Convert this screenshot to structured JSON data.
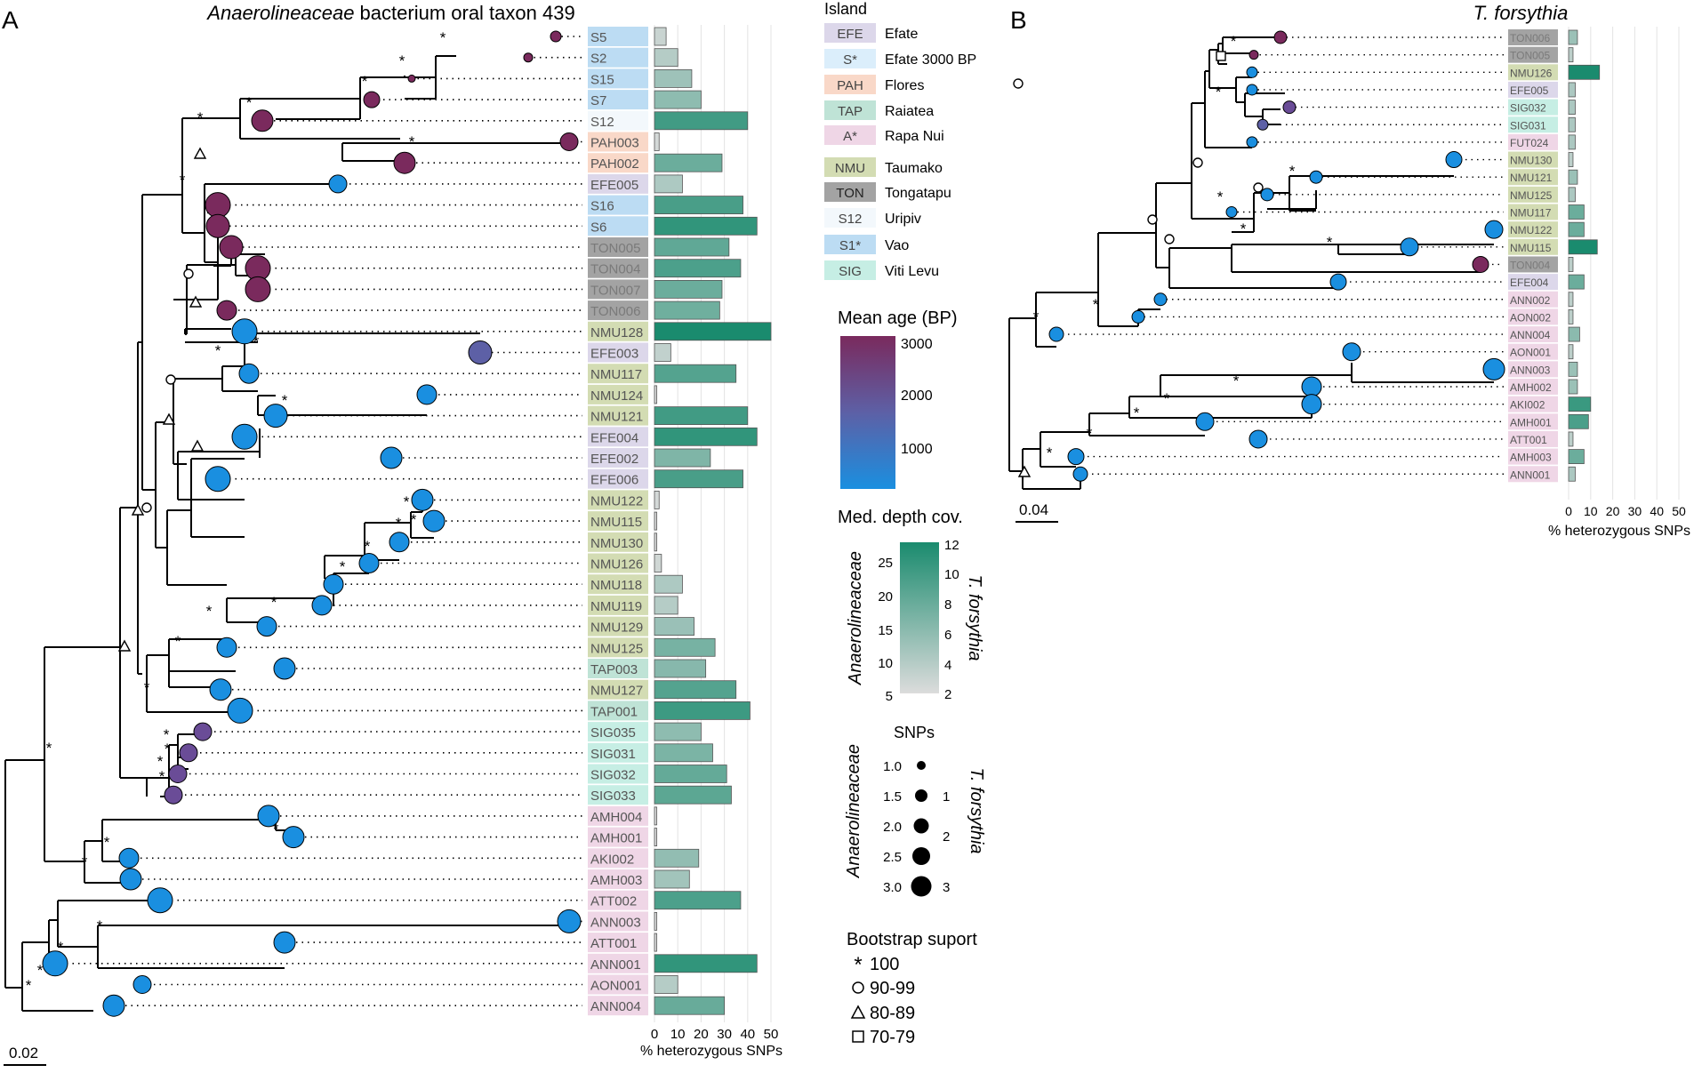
{
  "panel_a": {
    "letter": "A",
    "title_italic": "Anaerolineaceae",
    "title_rest": " bacterium oral taxon 439",
    "scale_label": "0.02",
    "axis_ticks": [
      "0",
      "10",
      "20",
      "30",
      "40",
      "50"
    ],
    "axis_label": "% heterozygous SNPs",
    "leaves": [
      {
        "label": "S5",
        "island": "S1*",
        "het": 5
      },
      {
        "label": "S2",
        "island": "S1*",
        "het": 10
      },
      {
        "label": "S15",
        "island": "S1*",
        "het": 16
      },
      {
        "label": "S7",
        "island": "S1*",
        "het": 20
      },
      {
        "label": "S12",
        "island": "S12",
        "het": 40
      },
      {
        "label": "PAH003",
        "island": "PAH",
        "het": 2
      },
      {
        "label": "PAH002",
        "island": "PAH",
        "het": 29
      },
      {
        "label": "EFE005",
        "island": "EFE",
        "het": 12
      },
      {
        "label": "S16",
        "island": "S1*",
        "het": 38
      },
      {
        "label": "S6",
        "island": "S1*",
        "het": 44
      },
      {
        "label": "TON005",
        "island": "TON",
        "het": 32
      },
      {
        "label": "TON004",
        "island": "TON",
        "het": 37
      },
      {
        "label": "TON007",
        "island": "TON",
        "het": 29
      },
      {
        "label": "TON006",
        "island": "TON",
        "het": 28
      },
      {
        "label": "NMU128",
        "island": "NMU",
        "het": 50
      },
      {
        "label": "EFE003",
        "island": "EFE",
        "het": 7
      },
      {
        "label": "NMU117",
        "island": "NMU",
        "het": 35
      },
      {
        "label": "NMU124",
        "island": "NMU",
        "het": 1
      },
      {
        "label": "NMU121",
        "island": "NMU",
        "het": 40
      },
      {
        "label": "EFE004",
        "island": "EFE",
        "het": 44
      },
      {
        "label": "EFE002",
        "island": "EFE",
        "het": 24
      },
      {
        "label": "EFE006",
        "island": "EFE",
        "het": 38
      },
      {
        "label": "NMU122",
        "island": "NMU",
        "het": 2
      },
      {
        "label": "NMU115",
        "island": "NMU",
        "het": 1
      },
      {
        "label": "NMU130",
        "island": "NMU",
        "het": 1
      },
      {
        "label": "NMU126",
        "island": "NMU",
        "het": 3
      },
      {
        "label": "NMU118",
        "island": "NMU",
        "het": 12
      },
      {
        "label": "NMU119",
        "island": "NMU",
        "het": 10
      },
      {
        "label": "NMU129",
        "island": "NMU",
        "het": 17
      },
      {
        "label": "NMU125",
        "island": "NMU",
        "het": 26
      },
      {
        "label": "TAP003",
        "island": "TAP",
        "het": 22
      },
      {
        "label": "NMU127",
        "island": "NMU",
        "het": 35
      },
      {
        "label": "TAP001",
        "island": "TAP",
        "het": 41
      },
      {
        "label": "SIG035",
        "island": "SIG",
        "het": 20
      },
      {
        "label": "SIG031",
        "island": "SIG",
        "het": 25
      },
      {
        "label": "SIG032",
        "island": "SIG",
        "het": 31
      },
      {
        "label": "SIG033",
        "island": "SIG",
        "het": 33
      },
      {
        "label": "AMH004",
        "island": "A*",
        "het": 1
      },
      {
        "label": "AMH001",
        "island": "A*",
        "het": 1
      },
      {
        "label": "AKI002",
        "island": "A*",
        "het": 19
      },
      {
        "label": "AMH003",
        "island": "A*",
        "het": 15
      },
      {
        "label": "ATT002",
        "island": "A*",
        "het": 37
      },
      {
        "label": "ANN003",
        "island": "A*",
        "het": 1
      },
      {
        "label": "ATT001",
        "island": "A*",
        "het": 1
      },
      {
        "label": "ANN001",
        "island": "A*",
        "het": 44
      },
      {
        "label": "AON001",
        "island": "A*",
        "het": 10
      },
      {
        "label": "ANN004",
        "island": "A*",
        "het": 30
      }
    ]
  },
  "panel_b": {
    "letter": "B",
    "title_italic": "T. forsythia",
    "scale_label": "0.04",
    "axis_ticks": [
      "0",
      "10",
      "20",
      "30",
      "40",
      "50"
    ],
    "axis_label": "% heterozygous SNPs",
    "leaves": [
      {
        "label": "TON006",
        "island": "TON",
        "het": 4
      },
      {
        "label": "TON005",
        "island": "TON",
        "het": 2
      },
      {
        "label": "NMU126",
        "island": "NMU",
        "het": 14
      },
      {
        "label": "EFE005",
        "island": "EFE",
        "het": 3
      },
      {
        "label": "SIG032",
        "island": "SIG",
        "het": 3
      },
      {
        "label": "SIG031",
        "island": "SIG",
        "het": 3
      },
      {
        "label": "FUT024",
        "island": "A*",
        "het": 3
      },
      {
        "label": "NMU130",
        "island": "NMU",
        "het": 2
      },
      {
        "label": "NMU121",
        "island": "NMU",
        "het": 4
      },
      {
        "label": "NMU125",
        "island": "NMU",
        "het": 3
      },
      {
        "label": "NMU117",
        "island": "NMU",
        "het": 7
      },
      {
        "label": "NMU122",
        "island": "NMU",
        "het": 7
      },
      {
        "label": "NMU115",
        "island": "NMU",
        "het": 13
      },
      {
        "label": "TON004",
        "island": "TON",
        "het": 2
      },
      {
        "label": "EFE004",
        "island": "EFE",
        "het": 7
      },
      {
        "label": "ANN002",
        "island": "A*",
        "het": 2
      },
      {
        "label": "AON002",
        "island": "A*",
        "het": 2
      },
      {
        "label": "ANN004",
        "island": "A*",
        "het": 5
      },
      {
        "label": "AON001",
        "island": "A*",
        "het": 2
      },
      {
        "label": "ANN003",
        "island": "A*",
        "het": 4
      },
      {
        "label": "AMH002",
        "island": "A*",
        "het": 4
      },
      {
        "label": "AKI002",
        "island": "A*",
        "het": 10
      },
      {
        "label": "AMH001",
        "island": "A*",
        "het": 9
      },
      {
        "label": "ATT001",
        "island": "A*",
        "het": 2
      },
      {
        "label": "AMH003",
        "island": "A*",
        "het": 7
      },
      {
        "label": "ANN001",
        "island": "A*",
        "het": 3
      }
    ]
  },
  "legend": {
    "island_title": "Island",
    "islands": [
      {
        "code": "EFE",
        "name": "Efate",
        "color": "#dcd7ea"
      },
      {
        "code": "S*",
        "name": "Efate 3000 BP",
        "color": "#dbeefb"
      },
      {
        "code": "PAH",
        "name": "Flores",
        "color": "#f9d8c8"
      },
      {
        "code": "TAP",
        "name": "Raiatea",
        "color": "#bfe3d6"
      },
      {
        "code": "A*",
        "name": "Rapa Nui",
        "color": "#efd6e6"
      },
      {
        "code": "NMU",
        "name": "Taumako",
        "color": "#d3dcb3"
      },
      {
        "code": "TON",
        "name": "Tongatapu",
        "color": "#a3a3a3"
      },
      {
        "code": "S12",
        "name": "Uripiv",
        "color": "#f3f8fc"
      },
      {
        "code": "S1*",
        "name": "Vao",
        "color": "#bcdcf3"
      },
      {
        "code": "SIG",
        "name": "Viti Levu",
        "color": "#c6eee4"
      }
    ],
    "age_title": "Mean age (BP)",
    "age_ticks": [
      "3000",
      "2000",
      "1000"
    ],
    "depth_title": "Med. depth cov.",
    "depth_left_label": "Anaerolineaceae",
    "depth_right_label": "T. forsythia",
    "depth_left_ticks": [
      "25",
      "20",
      "15",
      "10",
      "5"
    ],
    "depth_right_ticks": [
      "12",
      "10",
      "8",
      "6",
      "4",
      "2"
    ],
    "snp_title": "SNPs",
    "snp_left_label": "Anaerolineaceae",
    "snp_right_label": "T. forsythia",
    "snp_left_values": [
      "1.0",
      "1.5",
      "2.0",
      "2.5",
      "3.0"
    ],
    "snp_right_values": [
      "1",
      "2",
      "3"
    ],
    "bootstrap_title": "Bootstrap suport",
    "bootstrap": [
      "100",
      "90-99",
      "80-89",
      "70-79"
    ]
  }
}
